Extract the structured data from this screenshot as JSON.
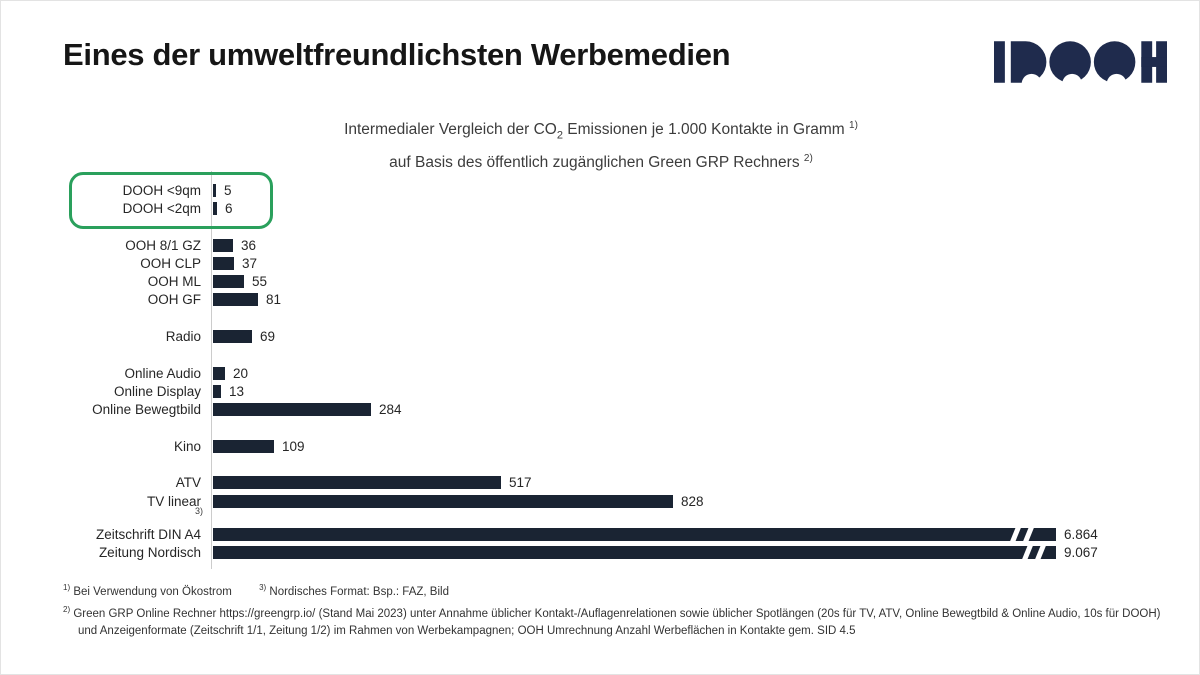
{
  "header": {
    "title": "Eines der umweltfreundlichsten Werbemedien",
    "logo_text": "IDOOH",
    "logo_color": "#1f2b4d"
  },
  "chart_title": {
    "line1_pre": "Intermedialer Vergleich der CO",
    "line1_sub": "2",
    "line1_post": " Emissionen je 1.000 Kontakte in Gramm ",
    "line1_sup": "1)",
    "line2_text": "auf Basis des öffentlich zugänglichen Green GRP Rechners ",
    "line2_sup": "2)"
  },
  "chart_data": {
    "type": "bar",
    "orientation": "horizontal",
    "unit": "Gramm CO2 je 1.000 Kontakte",
    "bar_color": "#1a2433",
    "highlight_box_color": "#2aa05c",
    "note_marker": "3)",
    "categories": [
      "DOOH <9qm",
      "DOOH <2qm",
      "OOH 8/1 GZ",
      "OOH CLP",
      "OOH ML",
      "OOH GF",
      "Radio",
      "Online Audio",
      "Online Display",
      "Online Bewegtbild",
      "Kino",
      "ATV",
      "TV linear",
      "Zeitschrift DIN A4",
      "Zeitung Nordisch"
    ],
    "values": [
      5,
      6,
      36,
      37,
      55,
      81,
      69,
      20,
      13,
      284,
      109,
      517,
      828,
      6864,
      9067
    ],
    "rows": [
      {
        "label": "DOOH <9qm",
        "value": 5,
        "display": "5",
        "group": 1,
        "highlighted": true
      },
      {
        "label": "DOOH <2qm",
        "value": 6,
        "display": "6",
        "group": 1,
        "highlighted": true
      },
      {
        "label": "OOH 8/1 GZ",
        "value": 36,
        "display": "36",
        "group": 2
      },
      {
        "label": "OOH CLP",
        "value": 37,
        "display": "37",
        "group": 2
      },
      {
        "label": "OOH ML",
        "value": 55,
        "display": "55",
        "group": 2
      },
      {
        "label": "OOH GF",
        "value": 81,
        "display": "81",
        "group": 2
      },
      {
        "label": "Radio",
        "value": 69,
        "display": "69",
        "group": 3
      },
      {
        "label": "Online Audio",
        "value": 20,
        "display": "20",
        "group": 4
      },
      {
        "label": "Online Display",
        "value": 13,
        "display": "13",
        "group": 4
      },
      {
        "label": "Online Bewegtbild",
        "value": 284,
        "display": "284",
        "group": 4
      },
      {
        "label": "Kino",
        "value": 109,
        "display": "109",
        "group": 5
      },
      {
        "label": "ATV",
        "value": 517,
        "display": "517",
        "group": 6
      },
      {
        "label": "TV linear",
        "value": 828,
        "display": "828",
        "group": 6
      },
      {
        "label": "Zeitschrift DIN A4",
        "value": 6864,
        "display": "6.864",
        "group": 7,
        "axis_break": true
      },
      {
        "label": "Zeitung Nordisch",
        "value": 9067,
        "display": "9.067",
        "group": 7,
        "axis_break": true
      }
    ]
  },
  "footnotes": {
    "f1_marker": "1)",
    "f1_text": " Bei Verwendung von Ökostrom",
    "f3_marker": "3)",
    "f3_text": " Nordisches Format: Bsp.: FAZ, Bild",
    "f2_marker": "2)",
    "f2_text": " Green GRP Online Rechner https://greengrp.io/ (Stand Mai 2023) unter Annahme üblicher Kontakt-/Auflagenrelationen sowie üblicher Spotlängen (20s für TV, ATV, Online Bewegtbild & Online Audio, 10s für DOOH) und Anzeigenformate (Zeitschrift 1/1, Zeitung 1/2) im Rahmen von Werbekampagnen; OOH Umrechnung Anzahl Werbeflächen in Kontakte gem. SID 4.5"
  }
}
